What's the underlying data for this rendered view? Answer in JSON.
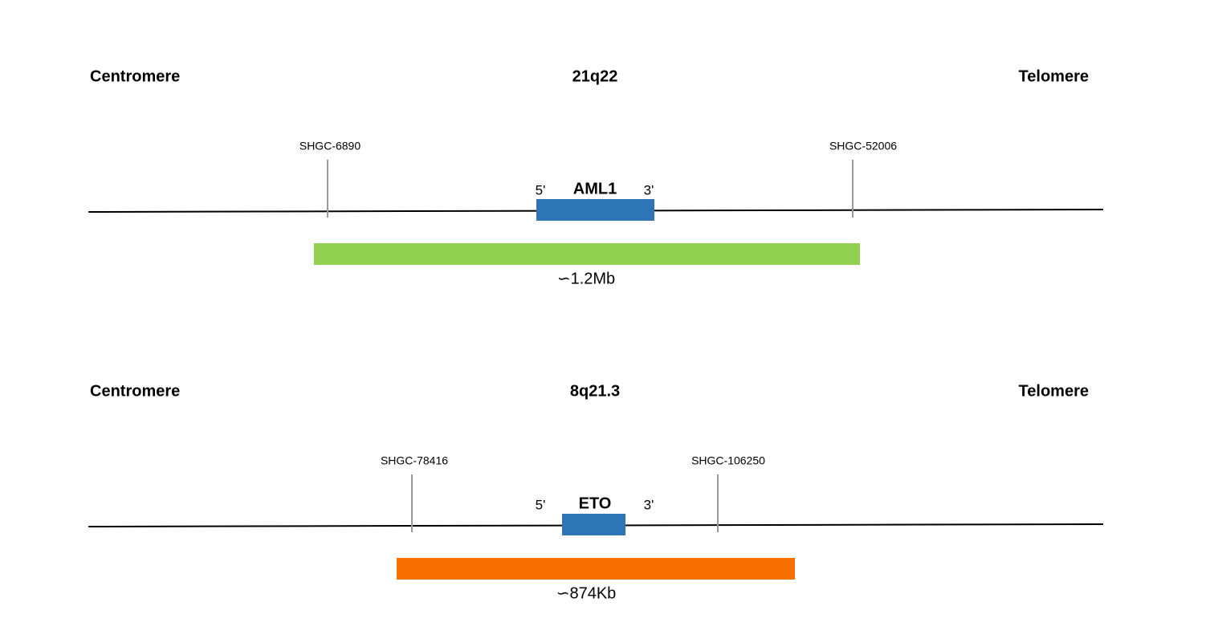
{
  "panels": [
    {
      "left_label": "Centromere",
      "title": "21q22",
      "right_label": "Telomere",
      "markers": [
        "SHGC-6890",
        "SHGC-52006"
      ],
      "gene": {
        "name": "AML1",
        "five_prime": "5'",
        "three_prime": "3'"
      },
      "probe_size": "∽1.2Mb"
    },
    {
      "left_label": "Centromere",
      "title": "8q21.3",
      "right_label": "Telomere",
      "markers": [
        "SHGC-78416",
        "SHGC-106250"
      ],
      "gene": {
        "name": "ETO",
        "five_prime": "5'",
        "three_prime": "3'"
      },
      "probe_size": "∽874Kb"
    }
  ]
}
